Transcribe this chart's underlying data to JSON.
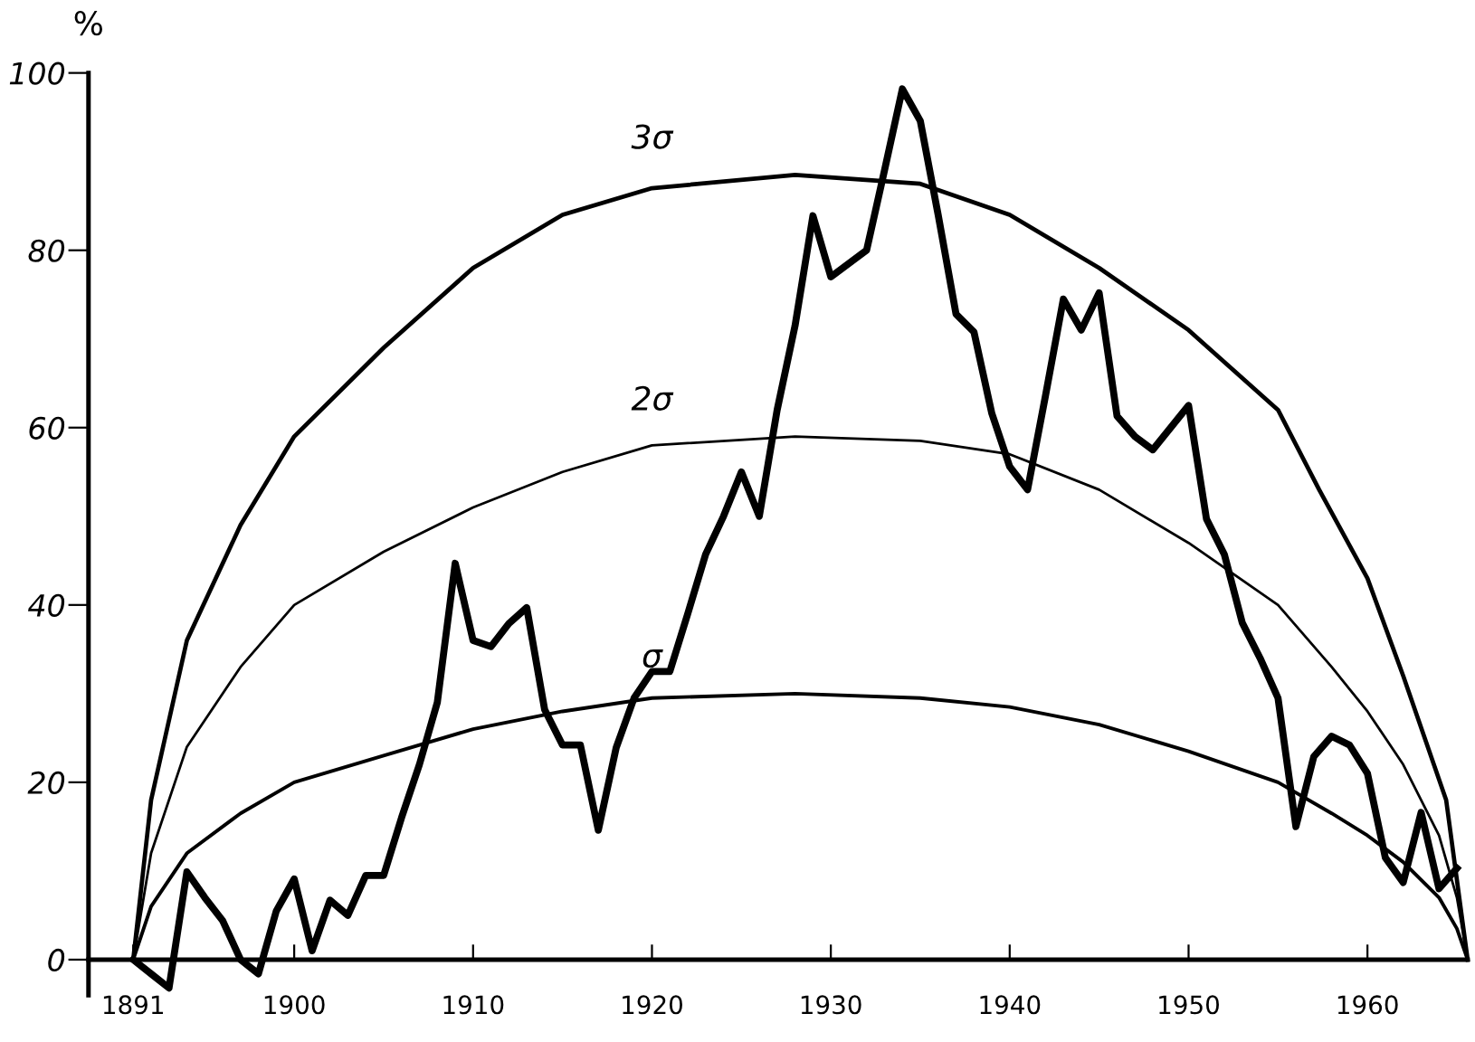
{
  "chart_data": {
    "type": "line",
    "ylabel": "%",
    "xlim": [
      1888.5,
      1965.6
    ],
    "ylim": [
      -4,
      100
    ],
    "xticks": [
      1891,
      1900,
      1910,
      1920,
      1930,
      1940,
      1950,
      1960
    ],
    "yticks": [
      0,
      20,
      40,
      60,
      80,
      100
    ],
    "grid": false,
    "legend": false,
    "marker": "none",
    "line_style": "solid",
    "series": [
      {
        "color": "#000000",
        "x": [
          1891,
          1892,
          1893,
          1894,
          1895,
          1896,
          1897,
          1898,
          1899,
          1900,
          1901,
          1902,
          1903,
          1904,
          1905,
          1906,
          1907,
          1908,
          1909,
          1910,
          1911,
          1912,
          1913,
          1914,
          1915,
          1916,
          1917,
          1918,
          1919,
          1920,
          1921,
          1922,
          1923,
          1924,
          1925,
          1926,
          1927,
          1928,
          1929,
          1930,
          1931,
          1932,
          1933,
          1934,
          1935,
          1936,
          1937,
          1938,
          1939,
          1940,
          1941,
          1942,
          1943,
          1944,
          1945,
          1946,
          1947,
          1948,
          1949,
          1950,
          1951,
          1952,
          1953,
          1954,
          1955,
          1956,
          1957,
          1958,
          1959,
          1960,
          1961,
          1962,
          1963,
          1964,
          1965
        ],
        "values": [
          0,
          -1.6,
          -3.2,
          9.9,
          7,
          4.4,
          0,
          -1.6,
          5.5,
          9.1,
          1,
          6.7,
          5,
          9.5,
          9.5,
          16,
          22,
          29,
          44.7,
          36,
          35.3,
          37.9,
          39.7,
          28.2,
          24.2,
          24.2,
          14.6,
          23.9,
          29.5,
          32.5,
          32.5,
          39,
          45.7,
          50,
          55,
          50,
          62,
          71.5,
          83.9,
          77,
          78.5,
          80,
          89,
          98.2,
          94.6,
          84,
          72.8,
          70.8,
          61.6,
          55.6,
          53,
          63.6,
          74.5,
          71,
          75.2,
          61.3,
          59,
          57.5,
          60,
          62.5,
          49.7,
          45.7,
          38,
          34,
          29.5,
          15,
          22.9,
          25.2,
          24.2,
          21,
          11.5,
          8.7,
          16.6,
          8,
          10.3
        ]
      },
      {
        "name": "σ",
        "color": "#000000",
        "x": [
          1891,
          1892,
          1894,
          1897,
          1900,
          1905,
          1910,
          1915,
          1920,
          1928,
          1935,
          1940,
          1945,
          1950,
          1955,
          1958,
          1960,
          1962,
          1964,
          1965,
          1965.6
        ],
        "values": [
          0,
          6,
          12,
          16.5,
          20,
          23,
          26,
          28,
          29.5,
          30,
          29.5,
          28.5,
          26.5,
          23.5,
          20,
          16.5,
          14,
          11,
          7,
          3.5,
          0
        ]
      },
      {
        "name": "2σ",
        "color": "#000000",
        "x": [
          1891,
          1892,
          1894,
          1897,
          1900,
          1905,
          1910,
          1915,
          1920,
          1928,
          1935,
          1940,
          1945,
          1950,
          1955,
          1958,
          1960,
          1962,
          1964,
          1965,
          1965.6
        ],
        "values": [
          0,
          12,
          24,
          33,
          40,
          46,
          51,
          55,
          58,
          59,
          58.5,
          57,
          53,
          47,
          40,
          33,
          28,
          22,
          14,
          7,
          0
        ]
      },
      {
        "name": "3σ",
        "color": "#000000",
        "x": [
          1891,
          1892,
          1894,
          1897,
          1900,
          1905,
          1910,
          1915,
          1920,
          1928,
          1935,
          1940,
          1945,
          1950,
          1955,
          1957.3,
          1960,
          1962,
          1964.4,
          1965.6
        ],
        "values": [
          0,
          18,
          36,
          49,
          59,
          69,
          78,
          84,
          87,
          88.5,
          87.5,
          84,
          78,
          71,
          62,
          53,
          43,
          32,
          18,
          0
        ]
      }
    ]
  }
}
